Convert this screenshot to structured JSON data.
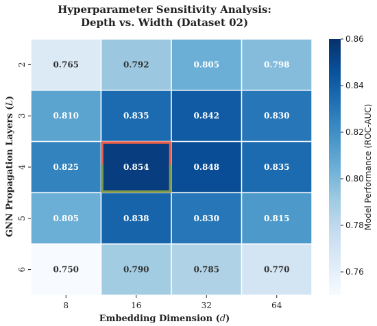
{
  "chart_data": {
    "type": "heatmap",
    "title_lines": [
      "Hyperparameter Sensitivity Analysis:",
      "Depth vs. Width (Dataset 02)"
    ],
    "xlabel_prefix": "Embedding Dimension (",
    "xlabel_var": "d",
    "xlabel_suffix": ")",
    "ylabel_prefix": "GNN Propagation Layers (",
    "ylabel_var": "L",
    "ylabel_suffix": ")",
    "x_categories": [
      "8",
      "16",
      "32",
      "64"
    ],
    "y_categories": [
      "2",
      "3",
      "4",
      "5",
      "6"
    ],
    "values": [
      [
        0.765,
        0.792,
        0.805,
        0.798
      ],
      [
        0.81,
        0.835,
        0.842,
        0.83
      ],
      [
        0.825,
        0.854,
        0.848,
        0.835
      ],
      [
        0.805,
        0.838,
        0.83,
        0.815
      ],
      [
        0.75,
        0.79,
        0.785,
        0.77
      ]
    ],
    "value_labels": [
      [
        "0.765",
        "0.792",
        "0.805",
        "0.798"
      ],
      [
        "0.810",
        "0.835",
        "0.842",
        "0.830"
      ],
      [
        "0.825",
        "0.854",
        "0.848",
        "0.835"
      ],
      [
        "0.805",
        "0.838",
        "0.830",
        "0.815"
      ],
      [
        "0.750",
        "0.790",
        "0.785",
        "0.770"
      ]
    ],
    "colormap": "Blues",
    "vmin": 0.75,
    "vmax": 0.86,
    "colorbar_label": "Model Performance (ROC-AUC)",
    "colorbar_ticks": [
      "0.76",
      "0.78",
      "0.80",
      "0.82",
      "0.84",
      "0.86"
    ],
    "colorbar_tick_values": [
      0.76,
      0.78,
      0.8,
      0.82,
      0.84,
      0.86
    ],
    "highlight": {
      "row": 2,
      "col": 1,
      "outline_colors": [
        "#e8604c",
        "#7a9a4a"
      ]
    }
  }
}
